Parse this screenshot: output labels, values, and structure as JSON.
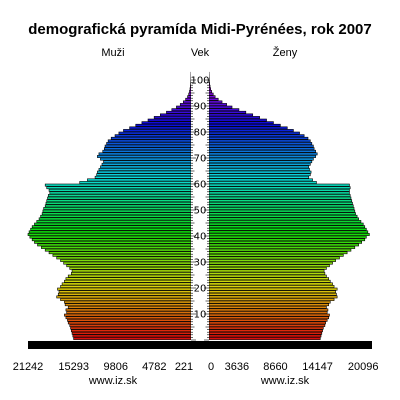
{
  "chart_data": {
    "type": "bar",
    "orientation": "horizontal-pyramid",
    "title": "demografická pyramída Midi-Pyrénées, rok 2007",
    "left_label": "Muži",
    "center_label": "Vek",
    "right_label": "Ženy",
    "left_tick_labels": [
      "21242",
      "15293",
      "9806",
      "4782",
      "221"
    ],
    "right_tick_labels": [
      "0",
      "3636",
      "8660",
      "14147",
      "20096"
    ],
    "age_tick_labels": [
      "10",
      "20",
      "30",
      "40",
      "50",
      "60",
      "70",
      "80",
      "90",
      "100"
    ],
    "footer_left": "www.iz.sk",
    "footer_right": "www.iz.sk",
    "axis_max": 21242,
    "age_range": [
      0,
      103
    ],
    "series": [
      {
        "name": "Muži",
        "color_scale": "rainbow-by-age",
        "values": [
          15300,
          15400,
          15500,
          15600,
          15700,
          15800,
          16000,
          16100,
          16300,
          16500,
          16200,
          16300,
          16000,
          16400,
          16500,
          17000,
          17500,
          17300,
          17200,
          17400,
          17000,
          16800,
          16500,
          16300,
          16000,
          15600,
          15500,
          15800,
          16200,
          16600,
          17000,
          17500,
          18000,
          18500,
          19000,
          19500,
          20000,
          20400,
          20700,
          21000,
          21242,
          21100,
          20900,
          20700,
          20400,
          20100,
          19800,
          19600,
          19400,
          19300,
          19200,
          19000,
          18900,
          18800,
          18700,
          18600,
          18400,
          18500,
          18800,
          19000,
          14500,
          13500,
          12500,
          12300,
          12200,
          12000,
          11800,
          11600,
          11400,
          11800,
          12200,
          12000,
          11500,
          11300,
          11200,
          11000,
          10800,
          10400,
          9900,
          9400,
          8800,
          8000,
          7200,
          6400,
          5600,
          4800,
          4000,
          3200,
          2500,
          1900,
          1400,
          1000,
          700,
          450,
          300,
          200,
          130,
          80,
          50,
          30,
          20,
          10,
          5
        ]
      },
      {
        "name": "Ženy",
        "color_scale": "rainbow-by-age",
        "values": [
          14500,
          14600,
          14700,
          14800,
          14900,
          15100,
          15200,
          15400,
          15600,
          15700,
          15400,
          15500,
          15300,
          15600,
          15800,
          16300,
          16700,
          16600,
          16500,
          16700,
          16300,
          16100,
          15800,
          15600,
          15300,
          15100,
          15000,
          15300,
          15700,
          16100,
          16500,
          17000,
          17500,
          18000,
          18500,
          19000,
          19500,
          19900,
          20300,
          20500,
          20900,
          20700,
          20500,
          20300,
          20100,
          19800,
          19500,
          19300,
          19100,
          19000,
          18900,
          18800,
          18700,
          18600,
          18500,
          18400,
          18300,
          18300,
          18400,
          18300,
          14000,
          13500,
          13000,
          13200,
          13300,
          13100,
          13000,
          13200,
          13400,
          13600,
          13900,
          14100,
          13900,
          13700,
          13600,
          13400,
          13200,
          12900,
          12400,
          11800,
          11000,
          10200,
          9300,
          8400,
          7500,
          6600,
          5700,
          4800,
          3900,
          3000,
          2300,
          1700,
          1200,
          800,
          550,
          350,
          220,
          140,
          90,
          50,
          30,
          15,
          8
        ]
      }
    ]
  }
}
